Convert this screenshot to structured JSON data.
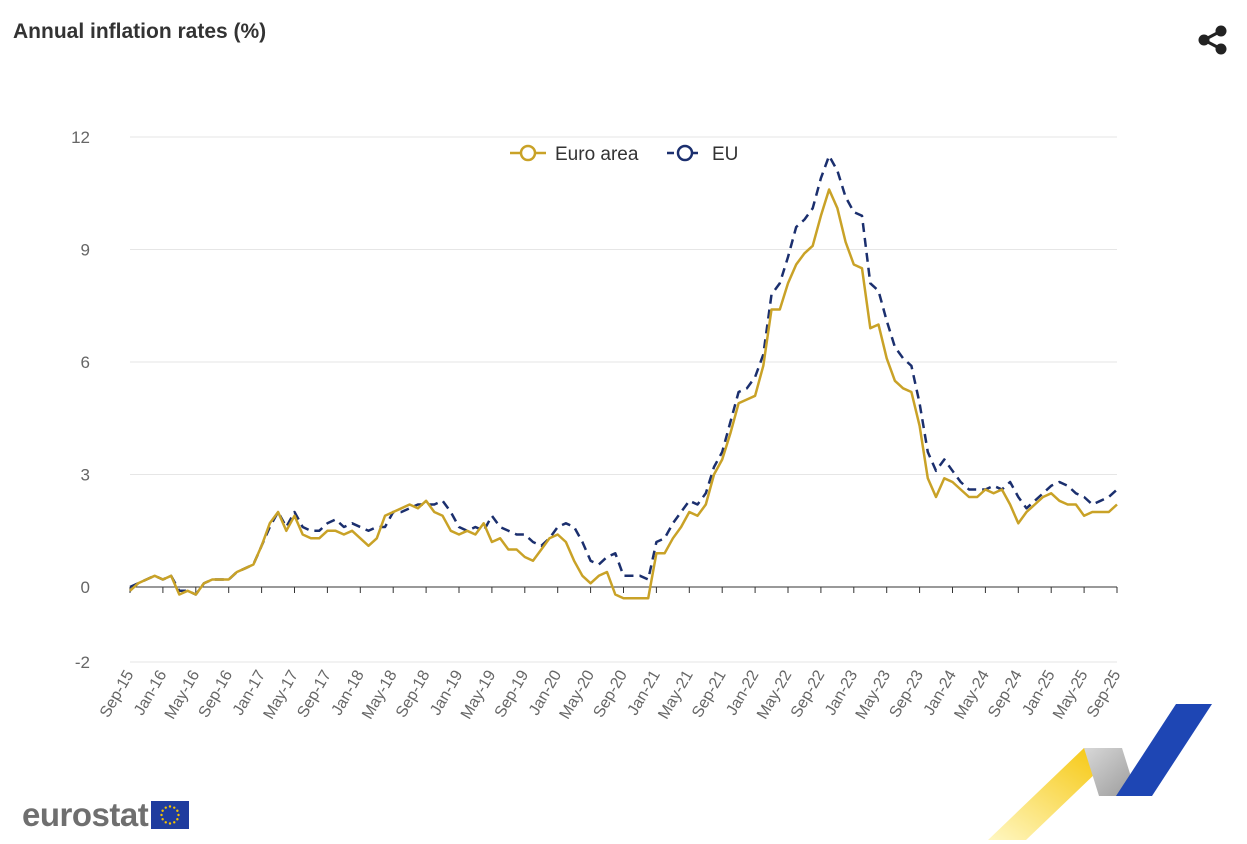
{
  "title": "Annual inflation rates (%)",
  "icons": {
    "share": "share-icon",
    "flag": "eu-flag-icon"
  },
  "logo": {
    "text": "eurostat"
  },
  "colors": {
    "euro_area": "#c9a227",
    "eu": "#1b2f6e",
    "decor_yellow": "#f5c300",
    "decor_blue": "#1e46b4",
    "decor_grey": "#b0b0b0"
  },
  "chart_data": {
    "type": "line",
    "title": "Annual inflation rates (%)",
    "xlabel": "",
    "ylabel": "",
    "ylim": [
      -2,
      12
    ],
    "yticks": [
      -2,
      0,
      3,
      6,
      9,
      12
    ],
    "ytick_labels": [
      "-2",
      "0",
      "3",
      "6",
      "9",
      "12"
    ],
    "grid": true,
    "legend_position": "top-center",
    "x_start": "Sep-15",
    "x_end": "Sep-25",
    "x_tick_labels": [
      "Sep-15",
      "Jan-16",
      "May-16",
      "Sep-16",
      "Jan-17",
      "May-17",
      "Sep-17",
      "Jan-18",
      "May-18",
      "Sep-18",
      "Jan-19",
      "May-19",
      "Sep-19",
      "Jan-20",
      "May-20",
      "Sep-20",
      "Jan-21",
      "May-21",
      "Sep-21",
      "Jan-22",
      "May-22",
      "Sep-22",
      "Jan-23",
      "May-23",
      "Sep-23",
      "Jan-24",
      "May-24",
      "Sep-24",
      "Jan-25",
      "May-25",
      "Sep-25"
    ],
    "series": [
      {
        "name": "Euro area",
        "style": "solid",
        "values": [
          -0.1,
          0.1,
          0.2,
          0.3,
          0.2,
          0.3,
          -0.2,
          -0.1,
          -0.2,
          0.1,
          0.2,
          0.2,
          0.2,
          0.4,
          0.5,
          0.6,
          1.1,
          1.7,
          2.0,
          1.5,
          1.9,
          1.4,
          1.3,
          1.3,
          1.5,
          1.5,
          1.4,
          1.5,
          1.3,
          1.1,
          1.3,
          1.9,
          2.0,
          2.1,
          2.2,
          2.1,
          2.3,
          2.0,
          1.9,
          1.5,
          1.4,
          1.5,
          1.4,
          1.7,
          1.2,
          1.3,
          1.0,
          1.0,
          0.8,
          0.7,
          1.0,
          1.3,
          1.4,
          1.2,
          0.7,
          0.3,
          0.1,
          0.3,
          0.4,
          -0.2,
          -0.3,
          -0.3,
          -0.3,
          -0.3,
          0.9,
          0.9,
          1.3,
          1.6,
          2.0,
          1.9,
          2.2,
          3.0,
          3.4,
          4.1,
          4.9,
          5.0,
          5.1,
          5.9,
          7.4,
          7.4,
          8.1,
          8.6,
          8.9,
          9.1,
          9.9,
          10.6,
          10.1,
          9.2,
          8.6,
          8.5,
          6.9,
          7.0,
          6.1,
          5.5,
          5.3,
          5.2,
          4.3,
          2.9,
          2.4,
          2.9,
          2.8,
          2.6,
          2.4,
          2.4,
          2.6,
          2.5,
          2.6,
          2.2,
          1.7,
          2.0,
          2.2,
          2.4,
          2.5,
          2.3,
          2.2,
          2.2,
          1.9,
          2.0,
          2.0,
          2.0,
          2.2
        ]
      },
      {
        "name": "EU",
        "style": "dashed",
        "values": [
          0.0,
          0.1,
          0.2,
          0.3,
          0.2,
          0.3,
          -0.1,
          -0.1,
          -0.2,
          0.1,
          0.2,
          0.2,
          0.2,
          0.4,
          0.5,
          0.6,
          1.1,
          1.6,
          2.0,
          1.6,
          2.0,
          1.6,
          1.5,
          1.5,
          1.7,
          1.8,
          1.6,
          1.7,
          1.6,
          1.5,
          1.6,
          1.6,
          2.0,
          2.0,
          2.1,
          2.2,
          2.2,
          2.2,
          2.3,
          2.0,
          1.6,
          1.5,
          1.6,
          1.5,
          1.9,
          1.6,
          1.5,
          1.4,
          1.4,
          1.2,
          1.1,
          1.3,
          1.6,
          1.7,
          1.6,
          1.2,
          0.7,
          0.6,
          0.8,
          0.9,
          0.3,
          0.3,
          0.3,
          0.2,
          1.2,
          1.3,
          1.7,
          2.0,
          2.3,
          2.2,
          2.5,
          3.2,
          3.6,
          4.4,
          5.2,
          5.3,
          5.6,
          6.2,
          7.8,
          8.1,
          8.8,
          9.6,
          9.8,
          10.1,
          10.9,
          11.5,
          11.1,
          10.4,
          10.0,
          9.9,
          8.1,
          7.9,
          7.1,
          6.4,
          6.1,
          5.9,
          4.9,
          3.6,
          3.1,
          3.4,
          3.1,
          2.8,
          2.6,
          2.6,
          2.6,
          2.7,
          2.6,
          2.8,
          2.4,
          2.1,
          2.3,
          2.5,
          2.7,
          2.8,
          2.7,
          2.5,
          2.4,
          2.2,
          2.3,
          2.4,
          2.6
        ]
      }
    ]
  }
}
